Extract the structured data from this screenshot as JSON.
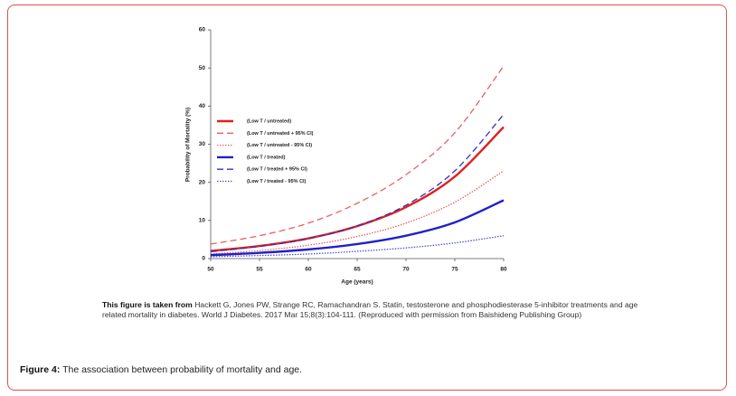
{
  "chart_data": {
    "type": "line",
    "x_label": "Age (years)",
    "y_label": "Probability of Mortality (%)",
    "x": [
      50,
      55,
      60,
      65,
      70,
      75,
      80
    ],
    "xlim": [
      50,
      80
    ],
    "xticks": [
      50,
      55,
      60,
      65,
      70,
      75,
      80
    ],
    "ylim": [
      0,
      60
    ],
    "yticks": [
      0,
      10,
      20,
      30,
      40,
      50,
      60
    ],
    "grid": false,
    "legend": "left",
    "series": [
      {
        "name": "(Low T / untreated)",
        "color": "#e02020",
        "style": "solid",
        "values": [
          2,
          3.3,
          5.3,
          8.5,
          13.5,
          21.5,
          34.5
        ]
      },
      {
        "name": "(Low T / untreated + 95% CI)",
        "color": "#e86060",
        "style": "dashed",
        "values": [
          3.8,
          6,
          9.3,
          14.5,
          22,
          33,
          50.5
        ]
      },
      {
        "name": "(Low T / untreated - 95% CI)",
        "color": "#e86060",
        "style": "dotted",
        "values": [
          1.2,
          2.1,
          3.5,
          5.8,
          9.3,
          14.8,
          23
        ]
      },
      {
        "name": "(Low T / treated)",
        "color": "#2020c8",
        "style": "solid",
        "values": [
          0.9,
          1.5,
          2.4,
          3.8,
          6,
          9.5,
          15.3
        ]
      },
      {
        "name": "(Low T / treated + 95% CI)",
        "color": "#3030c0",
        "style": "dashed",
        "values": [
          1.8,
          3.2,
          5.2,
          8.6,
          14,
          23,
          37.8
        ]
      },
      {
        "name": "(Low T / treated - 95% CI)",
        "color": "#5050d0",
        "style": "dotted",
        "values": [
          0.5,
          0.8,
          1.2,
          1.9,
          2.8,
          4.1,
          6
        ]
      }
    ]
  },
  "source_note": {
    "lead": "This figure is taken from",
    "text": "Hackett G, Jones PW, Strange RC, Ramachandran S. Statin, testosterone and phosphodiesterase 5-inhibitor treatments and age related mortality in diabetes. World J Diabetes. 2017 Mar 15;8(3):104-111. (Reproduced with permission from Baishideng Publishing Group)"
  },
  "figure_caption": {
    "label": "Figure 4:",
    "text": "The association between probability of mortality and age."
  }
}
